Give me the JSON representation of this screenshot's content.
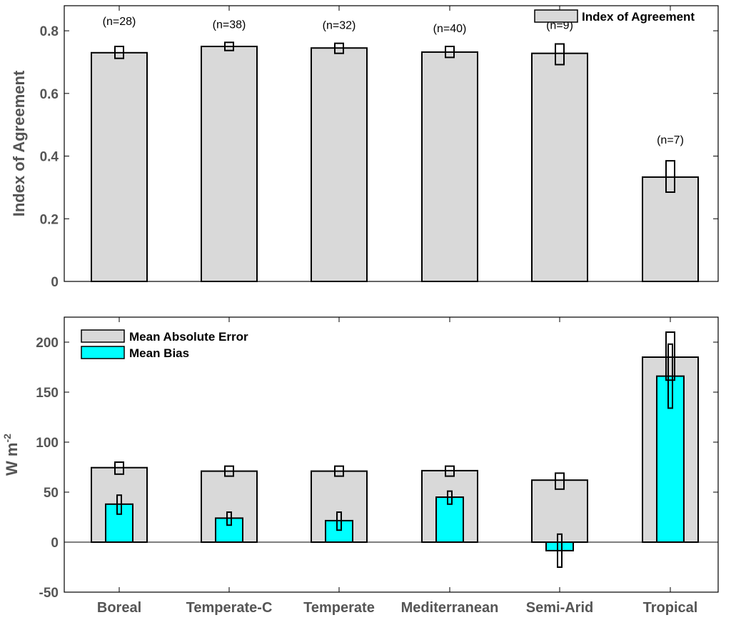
{
  "chart_data": [
    {
      "type": "bar",
      "categories": [
        "Boreal",
        "Temperate-C",
        "Temperate",
        "Mediterranean",
        "Semi-Arid",
        "Tropical"
      ],
      "ylabel": "Index of Agreement",
      "ylim": [
        0,
        0.88
      ],
      "yticks": [
        "0",
        "0.2",
        "0.4",
        "0.6",
        "0.8"
      ],
      "series": [
        {
          "name": "Index of Agreement",
          "color": "#d9d9d9",
          "values": [
            0.73,
            0.75,
            0.745,
            0.732,
            0.728,
            0.333
          ],
          "error_low": [
            0.712,
            0.737,
            0.728,
            0.715,
            0.692,
            0.285
          ],
          "error_high": [
            0.75,
            0.763,
            0.76,
            0.75,
            0.758,
            0.385
          ]
        }
      ],
      "annotations": [
        "(n=28)",
        "(n=38)",
        "(n=32)",
        "(n=40)",
        "(n=9)",
        "(n=7)"
      ],
      "legend": "top-right"
    },
    {
      "type": "bar",
      "categories": [
        "Boreal",
        "Temperate-C",
        "Temperate",
        "Mediterranean",
        "Semi-Arid",
        "Tropical"
      ],
      "ylabel_main": "W m",
      "ylabel_sup": "-2",
      "ylim": [
        -50,
        225
      ],
      "yticks": [
        "-50",
        "0",
        "50",
        "100",
        "150",
        "200"
      ],
      "series": [
        {
          "name": "Mean Absolute Error",
          "color": "#d9d9d9",
          "values": [
            74.5,
            71,
            71,
            71.5,
            62,
            185
          ],
          "error_low": [
            68,
            66,
            66,
            66,
            53,
            162
          ],
          "error_high": [
            80,
            76,
            76,
            76,
            69,
            210
          ]
        },
        {
          "name": "Mean Bias",
          "color": "#00ffff",
          "values": [
            38,
            24,
            21.5,
            45,
            -8.5,
            166
          ],
          "error_low": [
            28,
            17,
            12,
            38,
            -25,
            134
          ],
          "error_high": [
            47,
            30,
            30,
            51,
            8,
            198
          ]
        }
      ],
      "legend": "top-left"
    }
  ]
}
